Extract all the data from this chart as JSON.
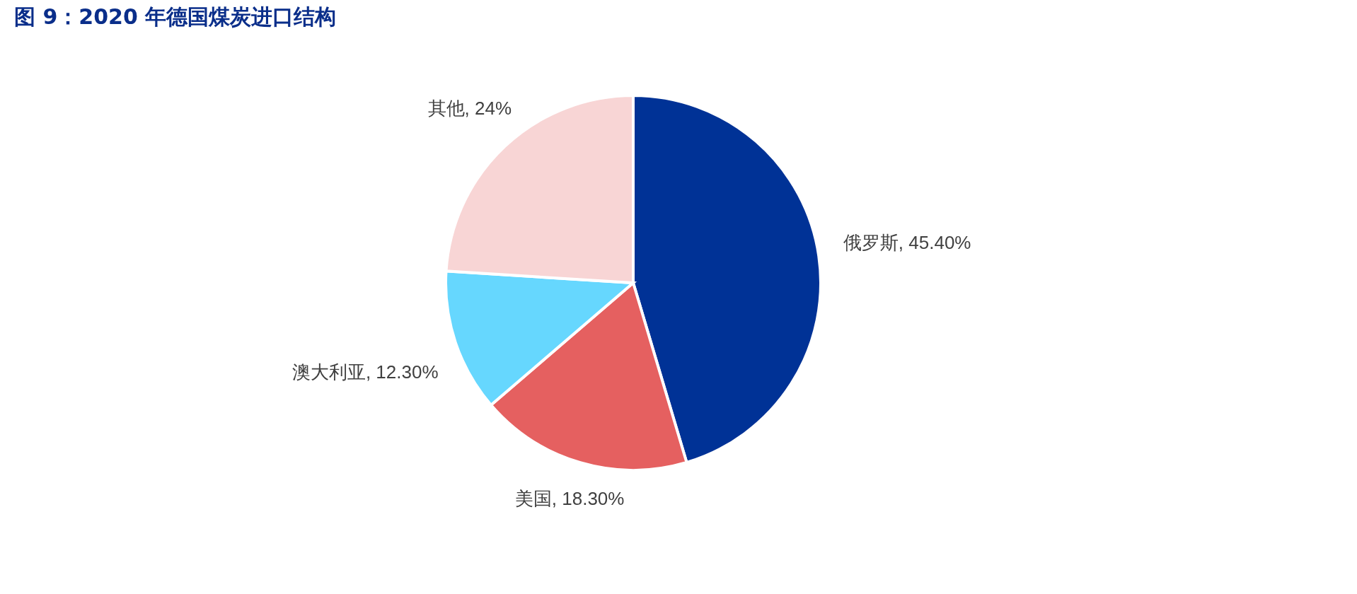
{
  "chart_data": {
    "type": "pie",
    "title": "图 9：2020 年德国煤炭进口结构",
    "categories": [
      "俄罗斯",
      "美国",
      "澳大利亚",
      "其他"
    ],
    "values": [
      45.4,
      18.3,
      12.3,
      24
    ],
    "value_labels": [
      ", 45.40%",
      ", 18.30%",
      ", 12.30%",
      ", 24%"
    ],
    "colors": [
      "#003296",
      "#e56060",
      "#66d7fe",
      "#f8d5d5"
    ],
    "legend": false
  }
}
